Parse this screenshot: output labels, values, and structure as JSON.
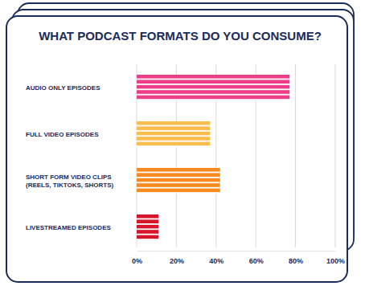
{
  "chart_data": {
    "type": "bar",
    "orientation": "horizontal",
    "title": "WHAT PODCAST FORMATS DO YOU CONSUME?",
    "categories": [
      "AUDIO ONLY EPISODES",
      "FULL VIDEO EPISODES",
      "SHORT FORM VIDEO CLIPS (REELS, TIKTOKS, SHORTS)",
      "LIVESTREAMED EPISODES"
    ],
    "values": [
      77,
      37,
      42,
      11
    ],
    "colors": [
      "#ee3e8a",
      "#fbbd4d",
      "#f68a1f",
      "#d7152a"
    ],
    "xlim": [
      0,
      100
    ],
    "xticks": [
      {
        "value": 0,
        "label": "0%"
      },
      {
        "value": 20,
        "label": "20%"
      },
      {
        "value": 40,
        "label": "40%"
      },
      {
        "value": 60,
        "label": "60%"
      },
      {
        "value": 80,
        "label": "80%"
      },
      {
        "value": 100,
        "label": "100%"
      }
    ],
    "grid": true
  }
}
